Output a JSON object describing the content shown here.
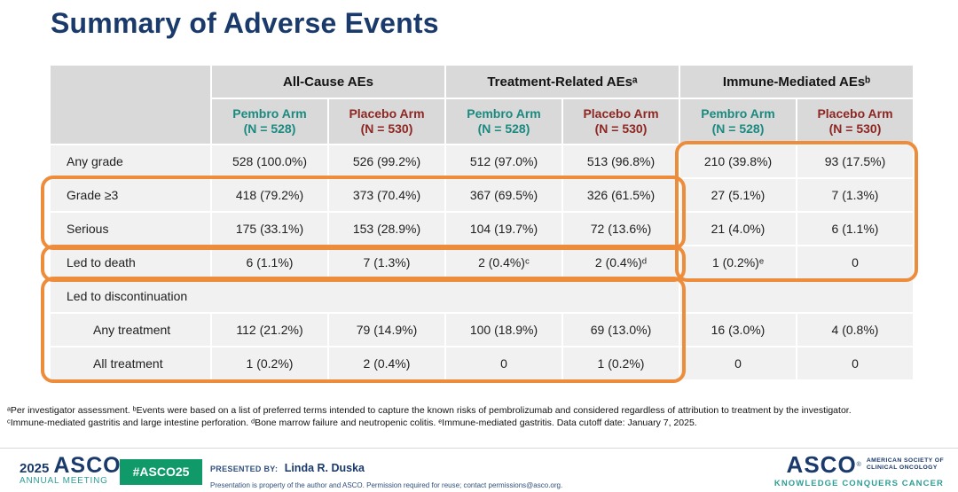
{
  "title": "Summary of Adverse Events",
  "table": {
    "groups": [
      {
        "label": "All-Cause AEs"
      },
      {
        "label": "Treatment-Related AEsᵃ"
      },
      {
        "label": "Immune-Mediated AEsᵇ"
      }
    ],
    "arms": [
      {
        "name": "Pembro Arm",
        "n": "(N = 528)"
      },
      {
        "name": "Placebo Arm",
        "n": "(N = 530)"
      },
      {
        "name": "Pembro Arm",
        "n": "(N = 528)"
      },
      {
        "name": "Placebo Arm",
        "n": "(N = 530)"
      },
      {
        "name": "Pembro Arm",
        "n": "(N = 528)"
      },
      {
        "name": "Placebo Arm",
        "n": "(N = 530)"
      }
    ],
    "rows": [
      {
        "label": "Any grade",
        "cells": [
          "528 (100.0%)",
          "526 (99.2%)",
          "512 (97.0%)",
          "513 (96.8%)",
          "210 (39.8%)",
          "93 (17.5%)"
        ]
      },
      {
        "label": "Grade ≥3",
        "cells": [
          "418 (79.2%)",
          "373 (70.4%)",
          "367 (69.5%)",
          "326 (61.5%)",
          "27 (5.1%)",
          "7 (1.3%)"
        ]
      },
      {
        "label": "Serious",
        "cells": [
          "175 (33.1%)",
          "153 (28.9%)",
          "104 (19.7%)",
          "72 (13.6%)",
          "21 (4.0%)",
          "6 (1.1%)"
        ]
      },
      {
        "label": "Led to death",
        "cells": [
          "6 (1.1%)",
          "7 (1.3%)",
          "2 (0.4%)ᶜ",
          "2 (0.4%)ᵈ",
          "1 (0.2%)ᵉ",
          "0"
        ]
      },
      {
        "label": "Led to discontinuation",
        "cells": []
      },
      {
        "label": "Any treatment",
        "cells": [
          "112 (21.2%)",
          "79 (14.9%)",
          "100 (18.9%)",
          "69 (13.0%)",
          "16 (3.0%)",
          "4 (0.8%)"
        ]
      },
      {
        "label": "All treatment",
        "cells": [
          "1 (0.2%)",
          "2 (0.4%)",
          "0",
          "1 (0.2%)",
          "0",
          "0"
        ]
      }
    ]
  },
  "footnotes": {
    "line1": "ᵃPer investigator assessment. ᵇEvents were based on a list of preferred terms intended to capture the known risks of pembrolizumab and considered regardless of attribution to treatment by the investigator.",
    "line2": "ᶜImmune-mediated gastritis and large intestine perforation. ᵈBone marrow failure and neutropenic colitis. ᵉImmune-mediated gastritis.  Data cutoff date: January 7, 2025."
  },
  "footer": {
    "meeting_year": "2025",
    "meeting_name": "ASCO",
    "meeting_sub": "ANNUAL MEETING",
    "hashtag": "#ASCO25",
    "presented_by_label": "PRESENTED BY:",
    "presenter_name": "Linda R. Duska",
    "disclaimer": "Presentation is property of the author and ASCO. Permission required for reuse; contact permissions@asco.org.",
    "org_name": "ASCO",
    "org_line1": "AMERICAN SOCIETY OF",
    "org_line2": "CLINICAL ONCOLOGY",
    "org_tagline": "KNOWLEDGE CONQUERS CANCER",
    "reg_mark": "®"
  },
  "colors": {
    "title_navy": "#1a3a6c",
    "pembro_teal": "#1a8a80",
    "placebo_red": "#8e2723",
    "highlight_orange": "#ed8c3b",
    "header_gray": "#d9d9d9",
    "row_gray": "#f1f1f1",
    "hashtag_green": "#109a6a",
    "footer_teal": "#2f9e96"
  }
}
